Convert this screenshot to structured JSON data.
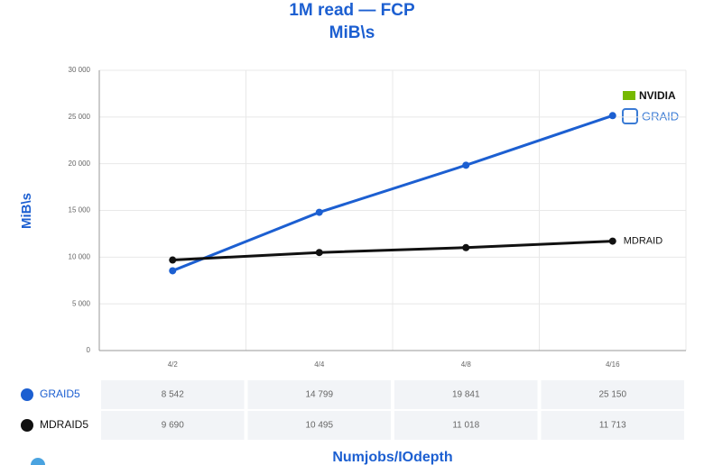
{
  "chart_data": {
    "type": "line",
    "title": "1M read — FCP",
    "subtitle": "MiB\\s",
    "y_label": "MiB\\s",
    "x_label": "Numjobs/IOdepth",
    "categories": [
      "4/2",
      "4/4",
      "4/8",
      "4/16"
    ],
    "series": [
      {
        "name": "GRAID5",
        "color": "#1c5fd1",
        "values": [
          8542,
          14799,
          19841,
          25150
        ],
        "value_labels": [
          "8 542",
          "14 799",
          "19 841",
          "25 150"
        ]
      },
      {
        "name": "MDRAID5",
        "color": "#111111",
        "values": [
          9690,
          10495,
          11018,
          11713
        ],
        "value_labels": [
          "9 690",
          "10 495",
          "11 018",
          "11 713"
        ]
      }
    ],
    "ylim": [
      0,
      30000
    ],
    "yticks": [
      {
        "value": 0,
        "label": "0"
      },
      {
        "value": 5000,
        "label": "5 000"
      },
      {
        "value": 10000,
        "label": "10 000"
      },
      {
        "value": 15000,
        "label": "15 000"
      },
      {
        "value": 20000,
        "label": "20 000"
      },
      {
        "value": 25000,
        "label": "25 000"
      },
      {
        "value": 30000,
        "label": "30 000"
      }
    ],
    "grid": true,
    "annotations": {
      "mdraid": "MDRAID",
      "nvidia": "NVIDIA",
      "graid": "GRAID"
    }
  }
}
